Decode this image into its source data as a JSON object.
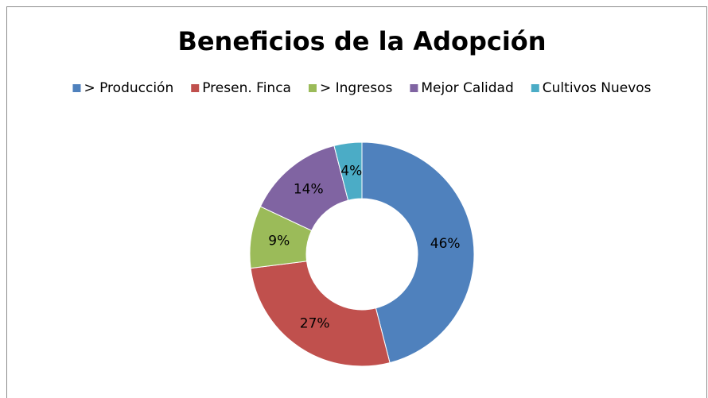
{
  "chart_data": {
    "type": "pie",
    "title": "Beneficios de la Adopción",
    "categories": [
      "> Producción",
      "Presen. Finca",
      "> Ingresos",
      "Mejor Calidad",
      "Cultivos Nuevos"
    ],
    "values": [
      46,
      27,
      9,
      14,
      4
    ],
    "value_labels": [
      "46%",
      "27%",
      "9%",
      "14%",
      "4%"
    ],
    "colors": [
      "#4f81bd",
      "#c0504d",
      "#9bbb59",
      "#8064a2",
      "#4bacc6"
    ],
    "donut": true,
    "legend": "top"
  }
}
